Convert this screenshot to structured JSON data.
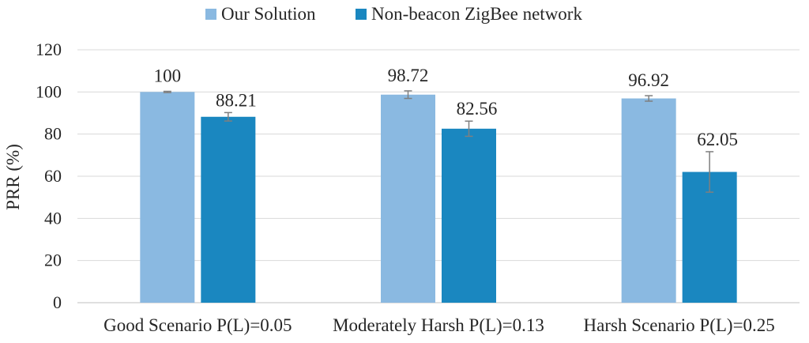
{
  "chart_data": {
    "type": "bar",
    "title": "",
    "xlabel": "",
    "ylabel": "PRR (%)",
    "ylim": [
      0,
      120
    ],
    "yticks": [
      0,
      20,
      40,
      60,
      80,
      100,
      120
    ],
    "grid": true,
    "legend_position": "top",
    "categories": [
      "Good Scenario P(L)=0.05",
      "Moderately Harsh P(L)=0.13",
      "Harsh Scenario P(L)=0.25"
    ],
    "series": [
      {
        "name": "Our Solution",
        "color": "#8ab9e1",
        "values": [
          100,
          98.72,
          96.92
        ],
        "labels": [
          "100",
          "98.72",
          "96.92"
        ],
        "error": [
          0.3,
          1.8,
          1.3
        ]
      },
      {
        "name": "Non-beacon ZigBee network",
        "color": "#1a87c0",
        "values": [
          88.21,
          82.56,
          62.05
        ],
        "labels": [
          "88.21",
          "82.56",
          "62.05"
        ],
        "error": [
          2.0,
          3.6,
          9.6
        ]
      }
    ]
  }
}
